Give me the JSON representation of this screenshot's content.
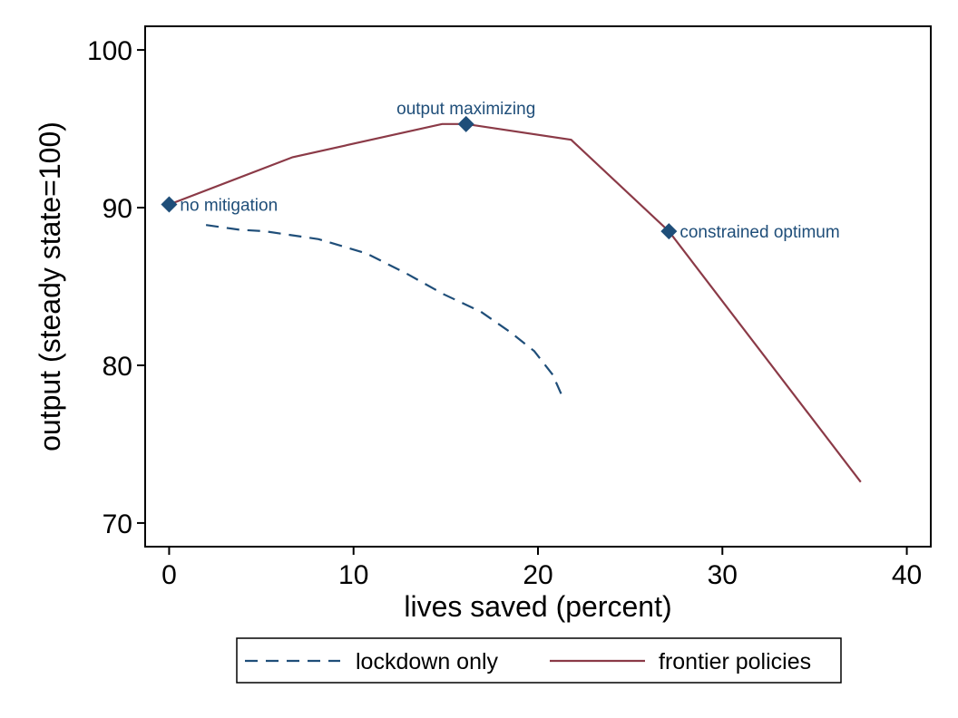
{
  "chart_data": {
    "type": "line",
    "xlabel": "lives saved (percent)",
    "ylabel": "output (steady state=100)",
    "xlim": [
      -1.3,
      41.3
    ],
    "ylim": [
      68.5,
      101.5
    ],
    "x_ticks": [
      0,
      10,
      20,
      30,
      40
    ],
    "y_ticks": [
      70,
      80,
      90,
      100
    ],
    "grid": false,
    "legend_placement": "bottom",
    "series": [
      {
        "name": "lockdown only",
        "style": "dashed",
        "color": "#1f4e79",
        "points": [
          [
            2.0,
            88.9
          ],
          [
            3.8,
            88.6
          ],
          [
            5.2,
            88.5
          ],
          [
            8.1,
            88.0
          ],
          [
            10.7,
            87.1
          ],
          [
            12.9,
            85.8
          ],
          [
            14.9,
            84.5
          ],
          [
            16.9,
            83.4
          ],
          [
            18.5,
            82.1
          ],
          [
            19.8,
            80.9
          ],
          [
            20.8,
            79.4
          ],
          [
            21.4,
            77.8
          ]
        ]
      },
      {
        "name": "frontier policies",
        "style": "solid",
        "color": "#8b3a47",
        "points": [
          [
            0,
            90.2
          ],
          [
            6.7,
            93.2
          ],
          [
            14.8,
            95.3
          ],
          [
            16.1,
            95.3
          ],
          [
            21.8,
            94.3
          ],
          [
            27.1,
            88.5
          ],
          [
            37.5,
            72.6
          ]
        ]
      }
    ],
    "markers": {
      "color": "#1f4e79",
      "points": [
        {
          "x": 0,
          "y": 90.2,
          "label": "no mitigation",
          "position": "right"
        },
        {
          "x": 16.1,
          "y": 95.3,
          "label": "output maximizing",
          "position": "above"
        },
        {
          "x": 27.1,
          "y": 88.5,
          "label": "constrained optimum",
          "position": "right"
        }
      ]
    }
  }
}
